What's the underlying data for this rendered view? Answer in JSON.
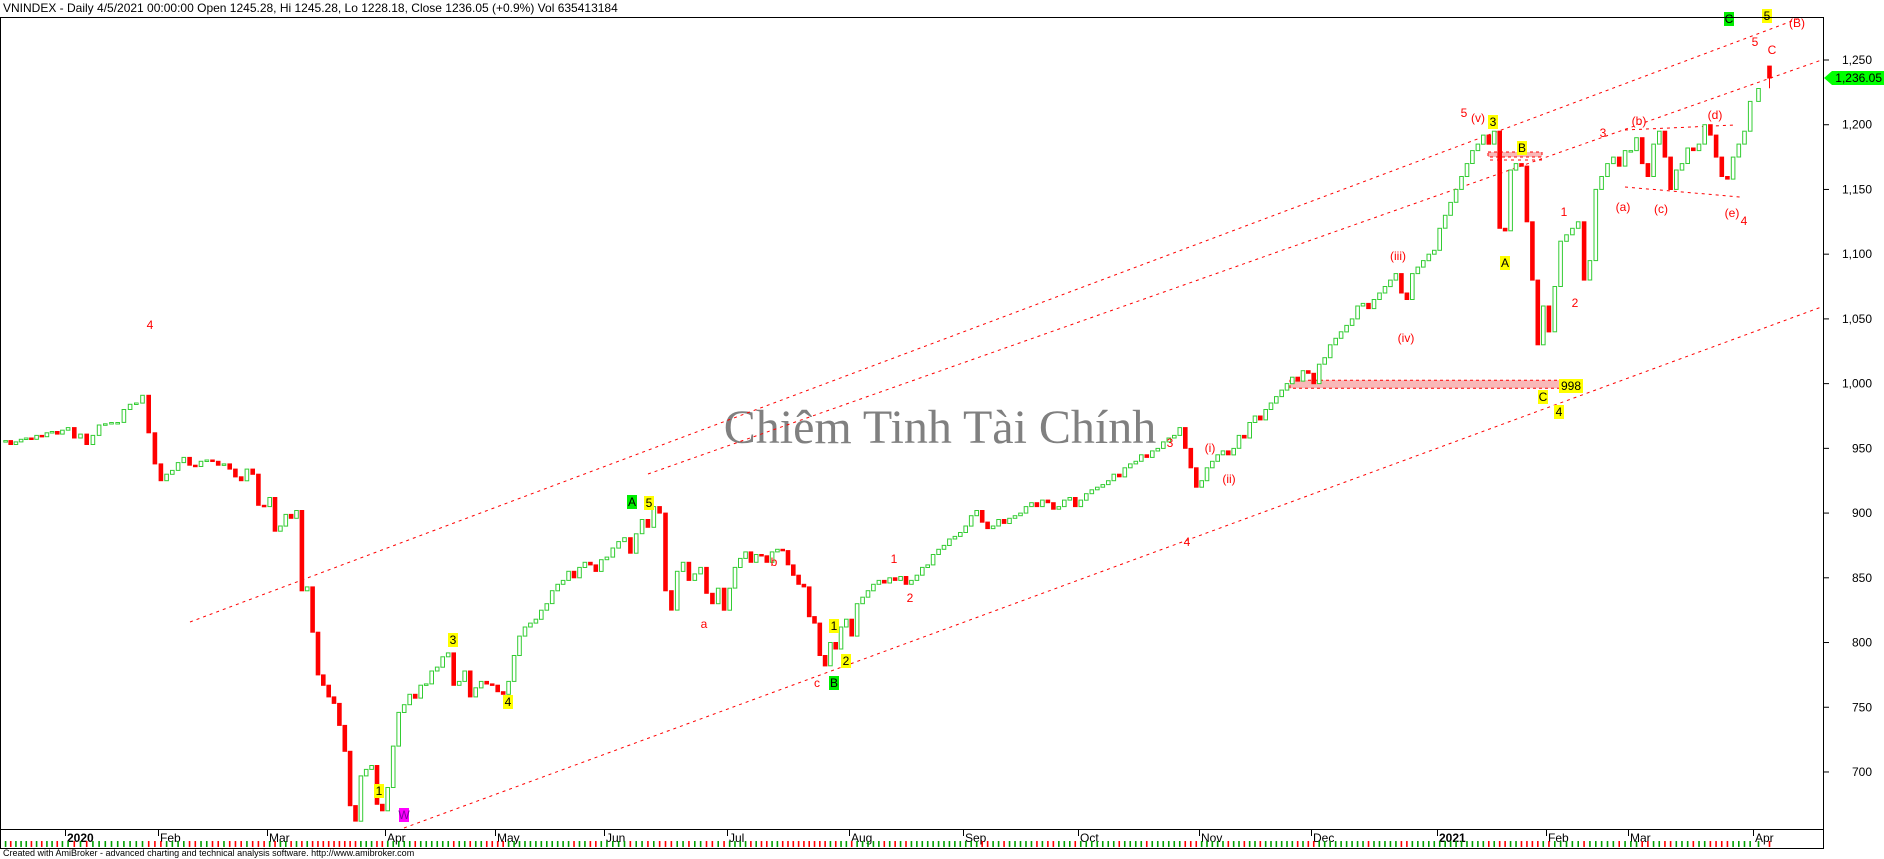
{
  "header": {
    "title": "VNINDEX - Daily 4/5/2021 00:00:00 Open 1245.28, Hi 1245.28, Lo 1228.18, Close 1236.05 (+0.9%) Vol 635413184"
  },
  "footer": {
    "text": "Created with AmiBroker - advanced charting and technical analysis software. http://www.amibroker.com"
  },
  "watermark": "Chiêm Tinh Tài Chính",
  "colors": {
    "up": "#33cc33",
    "down": "#ff0000",
    "trendline": "#ff0000",
    "last_price_tag": "#00ff00",
    "wave_yellow": "#ffff00",
    "wave_green": "#00ee00",
    "wave_magenta": "#ff00ff",
    "zone": "#f9b8b8"
  },
  "chart_data": {
    "type": "candlestick",
    "symbol": "VNINDEX",
    "interval": "Daily",
    "ylim": [
      655,
      1290
    ],
    "yticks": [
      "700",
      "750",
      "800",
      "850",
      "900",
      "950",
      "1,000",
      "1,050",
      "1,100",
      "1,150",
      "1,200",
      "1,250"
    ],
    "ytick_values": [
      700,
      750,
      800,
      850,
      900,
      950,
      1000,
      1050,
      1100,
      1150,
      1200,
      1250
    ],
    "last_price_label": "1,236.05",
    "last_bar": {
      "open": 1245.28,
      "high": 1245.28,
      "low": 1228.18,
      "close": 1236.05,
      "volume": 635413184,
      "change": "+0.9%"
    },
    "months": [
      {
        "label": "",
        "closes": [
          956,
          953,
          955,
          957,
          958,
          957,
          960,
          959,
          962,
          963,
          961,
          964
        ]
      },
      {
        "label": "2020",
        "closes": [
          966,
          958,
          961,
          953,
          960,
          968,
          969,
          970,
          970,
          980,
          984,
          985,
          991,
          962,
          938
        ]
      },
      {
        "label": "Feb",
        "closes": [
          925,
          930,
          933,
          939,
          943,
          937,
          936,
          940,
          941,
          940,
          937,
          938,
          934,
          928,
          925,
          934,
          930,
          906,
          905
        ]
      },
      {
        "label": "Mar",
        "closes": [
          912,
          886,
          890,
          899,
          896,
          902,
          840,
          843,
          808,
          775,
          767,
          758,
          753,
          736,
          716,
          674,
          662,
          697,
          702,
          705,
          675,
          670
        ]
      },
      {
        "label": "Apr",
        "closes": [
          688,
          720,
          746,
          752,
          760,
          757,
          767,
          768,
          778,
          781,
          789,
          792,
          767,
          770,
          778,
          758,
          765,
          770,
          768,
          767
        ]
      },
      {
        "label": "May",
        "closes": [
          762,
          760,
          770,
          790,
          805,
          812,
          815,
          818,
          825,
          830,
          840,
          845,
          848,
          855,
          850,
          858,
          862,
          860,
          855,
          864
        ]
      },
      {
        "label": "Jun",
        "closes": [
          866,
          873,
          878,
          881,
          869,
          884,
          895,
          889,
          905,
          900,
          840,
          825,
          855,
          862,
          848,
          853,
          858,
          838,
          830,
          842,
          825
        ]
      },
      {
        "label": "Jul",
        "closes": [
          842,
          858,
          865,
          870,
          862,
          868,
          867,
          862,
          870,
          872,
          871,
          860,
          852,
          845,
          843,
          820,
          815,
          790,
          782,
          800,
          795,
          812,
          818
        ]
      },
      {
        "label": "Aug",
        "closes": [
          805,
          830,
          835,
          840,
          845,
          848,
          846,
          850,
          848,
          851,
          845,
          848,
          852,
          858,
          860,
          868,
          872,
          875,
          880,
          882,
          885
        ]
      },
      {
        "label": "Sep",
        "closes": [
          890,
          898,
          902,
          893,
          888,
          890,
          895,
          892,
          896,
          898,
          900,
          905,
          908,
          905,
          910,
          908,
          903,
          905,
          910,
          912,
          905
        ]
      },
      {
        "label": "Oct",
        "closes": [
          910,
          915,
          918,
          920,
          922,
          925,
          930,
          928,
          935,
          938,
          940,
          945,
          943,
          948,
          950,
          955,
          958,
          960,
          966,
          950,
          935,
          920
        ]
      },
      {
        "label": "Nov",
        "closes": [
          925,
          935,
          940,
          945,
          948,
          945,
          950,
          960,
          958,
          970,
          975,
          972,
          980,
          985,
          990,
          995,
          1000,
          1005,
          1002,
          1010,
          1008
        ]
      },
      {
        "label": "Dec",
        "closes": [
          1000,
          1015,
          1020,
          1030,
          1035,
          1040,
          1045,
          1050,
          1060,
          1062,
          1058,
          1065,
          1070,
          1075,
          1080,
          1085,
          1070,
          1065,
          1085,
          1090,
          1095,
          1100,
          1103
        ]
      },
      {
        "label": "2021",
        "closes": [
          1120,
          1130,
          1140,
          1150,
          1160,
          1170,
          1180,
          1185,
          1192,
          1185,
          1195,
          1120,
          1118,
          1165,
          1170,
          1168,
          1125,
          1080,
          1030,
          1060
        ]
      },
      {
        "label": "Feb",
        "closes": [
          1040,
          1075,
          1110,
          1115,
          1120,
          1125,
          1080,
          1095,
          1150,
          1160,
          1170,
          1175,
          1168,
          1180
        ]
      },
      {
        "label": "Mar",
        "closes": [
          1180,
          1190,
          1170,
          1160,
          1185,
          1195,
          1175,
          1150,
          1165,
          1170,
          1182,
          1180,
          1185,
          1200,
          1192,
          1175,
          1160,
          1158,
          1175,
          1185,
          1195,
          1218
        ]
      },
      {
        "label": "Apr",
        "closes": [
          1228,
          1236.05
        ]
      }
    ],
    "zones": [
      {
        "label": "998",
        "price": 998
      }
    ],
    "wave_labels": [
      {
        "text": "4",
        "style": "red"
      },
      {
        "text": "1",
        "style": "yellow"
      },
      {
        "text": "W",
        "style": "magenta"
      },
      {
        "text": "3",
        "style": "yellow"
      },
      {
        "text": "4",
        "style": "yellow"
      },
      {
        "text": "A",
        "style": "green"
      },
      {
        "text": "5",
        "style": "yellow"
      },
      {
        "text": "a",
        "style": "red"
      },
      {
        "text": "b",
        "style": "red"
      },
      {
        "text": "c",
        "style": "red"
      },
      {
        "text": "1",
        "style": "yellow"
      },
      {
        "text": "2",
        "style": "yellow"
      },
      {
        "text": "B",
        "style": "green"
      },
      {
        "text": "1",
        "style": "red"
      },
      {
        "text": "2",
        "style": "red"
      },
      {
        "text": "3",
        "style": "red"
      },
      {
        "text": "4",
        "style": "red"
      },
      {
        "text": "(i)",
        "style": "red"
      },
      {
        "text": "(ii)",
        "style": "red"
      },
      {
        "text": "(iii)",
        "style": "red"
      },
      {
        "text": "(iv)",
        "style": "red"
      },
      {
        "text": "5",
        "style": "red"
      },
      {
        "text": "(v)",
        "style": "red"
      },
      {
        "text": "3",
        "style": "yellow"
      },
      {
        "text": "B",
        "style": "yellow"
      },
      {
        "text": "A",
        "style": "yellow"
      },
      {
        "text": "998",
        "style": "yellow"
      },
      {
        "text": "C",
        "style": "yellow"
      },
      {
        "text": "4",
        "style": "yellow"
      },
      {
        "text": "1",
        "style": "red"
      },
      {
        "text": "2",
        "style": "red"
      },
      {
        "text": "3",
        "style": "red"
      },
      {
        "text": "(b)",
        "style": "red"
      },
      {
        "text": "(a)",
        "style": "red"
      },
      {
        "text": "(c)",
        "style": "red"
      },
      {
        "text": "(d)",
        "style": "red"
      },
      {
        "text": "(e)",
        "style": "red"
      },
      {
        "text": "4",
        "style": "red"
      },
      {
        "text": "5",
        "style": "red"
      },
      {
        "text": "C",
        "style": "red"
      },
      {
        "text": "C",
        "style": "green"
      },
      {
        "text": "5",
        "style": "yellow"
      },
      {
        "text": "(B)",
        "style": "red"
      }
    ]
  }
}
